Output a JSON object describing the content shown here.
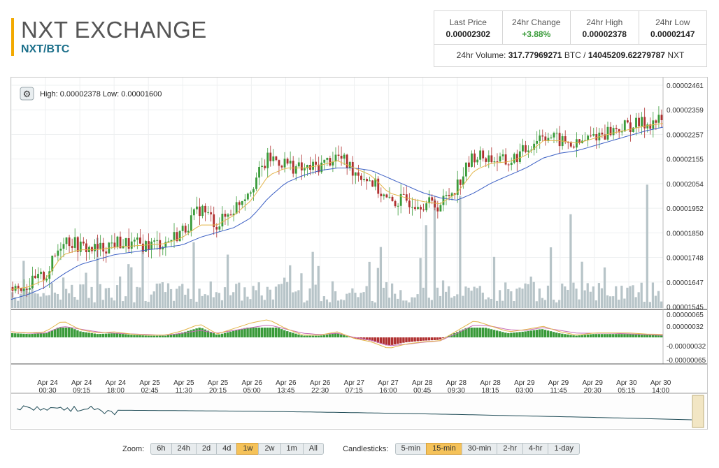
{
  "header": {
    "title": "NXT EXCHANGE",
    "pair": "NXT/BTC"
  },
  "stats": {
    "last_price_label": "Last Price",
    "last_price": "0.00002302",
    "change_label": "24hr Change",
    "change": "+3.88%",
    "high_label": "24hr High",
    "high": "0.00002378",
    "low_label": "24hr Low",
    "low": "0.00002147",
    "volume_label": "24hr Volume:",
    "volume_btc": "317.77969271",
    "volume_btc_unit": "BTC /",
    "volume_nxt": "14045209.62279787",
    "volume_nxt_unit": "NXT"
  },
  "chart_info": {
    "high_low_text": "High: 0.00002378  Low: 0.00001600"
  },
  "colors": {
    "up": "#3a9b3a",
    "down": "#b03030",
    "ma_fast": "#e3b54a",
    "ma_slow": "#3b5fc4",
    "volume": "#b7c4c8",
    "accent": "#f2a900"
  },
  "chart_data": {
    "type": "line",
    "y_ticks": [
      "0.00002461",
      "0.00002359",
      "0.00002257",
      "0.00002155",
      "0.00002054",
      "0.00001952",
      "0.00001850",
      "0.00001748",
      "0.00001647",
      "0.00001545"
    ],
    "ylim": [
      1.545e-05,
      2.461e-05
    ],
    "macd_ticks": [
      "0.00000065",
      "0.00000032",
      "-0.00000032",
      "-0.00000065"
    ],
    "x_ticks": [
      {
        "d": "Apr 24",
        "t": "00:30"
      },
      {
        "d": "Apr 24",
        "t": "09:15"
      },
      {
        "d": "Apr 24",
        "t": "18:00"
      },
      {
        "d": "Apr 25",
        "t": "02:45"
      },
      {
        "d": "Apr 25",
        "t": "11:30"
      },
      {
        "d": "Apr 25",
        "t": "20:15"
      },
      {
        "d": "Apr 26",
        "t": "05:00"
      },
      {
        "d": "Apr 26",
        "t": "13:45"
      },
      {
        "d": "Apr 26",
        "t": "22:30"
      },
      {
        "d": "Apr 27",
        "t": "07:15"
      },
      {
        "d": "Apr 27",
        "t": "16:00"
      },
      {
        "d": "Apr 28",
        "t": "00:45"
      },
      {
        "d": "Apr 28",
        "t": "09:30"
      },
      {
        "d": "Apr 28",
        "t": "18:15"
      },
      {
        "d": "Apr 29",
        "t": "03:00"
      },
      {
        "d": "Apr 29",
        "t": "11:45"
      },
      {
        "d": "Apr 29",
        "t": "20:30"
      },
      {
        "d": "Apr 30",
        "t": "05:15"
      },
      {
        "d": "Apr 30",
        "t": "14:00"
      }
    ],
    "price": [
      1.63e-05,
      1.64e-05,
      1.68e-05,
      1.83e-05,
      1.79e-05,
      1.78e-05,
      1.81e-05,
      1.8e-05,
      1.8e-05,
      1.81e-05,
      1.86e-05,
      1.95e-05,
      1.88e-05,
      1.95e-05,
      2.04e-05,
      2.15e-05,
      2.13e-05,
      2.1e-05,
      2.12e-05,
      2.16e-05,
      2.1e-05,
      2.06e-05,
      1.97e-05,
      1.98e-05,
      1.97e-05,
      1.96e-05,
      2.04e-05,
      2.16e-05,
      2.15e-05,
      2.13e-05,
      2.18e-05,
      2.25e-05,
      2.22e-05,
      2.2e-05,
      2.24e-05,
      2.26e-05,
      2.28e-05,
      2.29e-05,
      2.302e-05
    ],
    "ma_fast": [
      1.62e-05,
      1.63e-05,
      1.66e-05,
      1.76e-05,
      1.78e-05,
      1.78e-05,
      1.79e-05,
      1.795e-05,
      1.8e-05,
      1.805e-05,
      1.83e-05,
      1.88e-05,
      1.88e-05,
      1.92e-05,
      1.98e-05,
      2.08e-05,
      2.11e-05,
      2.11e-05,
      2.12e-05,
      2.14e-05,
      2.11e-05,
      2.08e-05,
      2.01e-05,
      1.99e-05,
      1.975e-05,
      1.965e-05,
      2.01e-05,
      2.1e-05,
      2.13e-05,
      2.135e-05,
      2.16e-05,
      2.22e-05,
      2.22e-05,
      2.21e-05,
      2.23e-05,
      2.25e-05,
      2.265e-05,
      2.28e-05,
      2.29e-05
    ],
    "ma_slow": [
      1.58e-05,
      1.6e-05,
      1.63e-05,
      1.68e-05,
      1.72e-05,
      1.74e-05,
      1.76e-05,
      1.77e-05,
      1.78e-05,
      1.79e-05,
      1.8e-05,
      1.83e-05,
      1.85e-05,
      1.87e-05,
      1.91e-05,
      1.99e-05,
      2.05e-05,
      2.08e-05,
      2.1e-05,
      2.11e-05,
      2.11e-05,
      2.1e-05,
      2.07e-05,
      2.04e-05,
      2.01e-05,
      1.99e-05,
      1.98e-05,
      2.01e-05,
      2.05e-05,
      2.08e-05,
      2.11e-05,
      2.15e-05,
      2.17e-05,
      2.18e-05,
      2.2e-05,
      2.22e-05,
      2.24e-05,
      2.26e-05,
      2.275e-05
    ]
  },
  "controls": {
    "zoom_label": "Zoom:",
    "zoom": [
      {
        "label": "6h",
        "active": false
      },
      {
        "label": "24h",
        "active": false
      },
      {
        "label": "2d",
        "active": false
      },
      {
        "label": "4d",
        "active": false
      },
      {
        "label": "1w",
        "active": true
      },
      {
        "label": "2w",
        "active": false
      },
      {
        "label": "1m",
        "active": false
      },
      {
        "label": "All",
        "active": false
      }
    ],
    "candle_label": "Candlesticks:",
    "candles": [
      {
        "label": "5-min",
        "active": false
      },
      {
        "label": "15-min",
        "active": true
      },
      {
        "label": "30-min",
        "active": false
      },
      {
        "label": "2-hr",
        "active": false
      },
      {
        "label": "4-hr",
        "active": false
      },
      {
        "label": "1-day",
        "active": false
      }
    ]
  }
}
